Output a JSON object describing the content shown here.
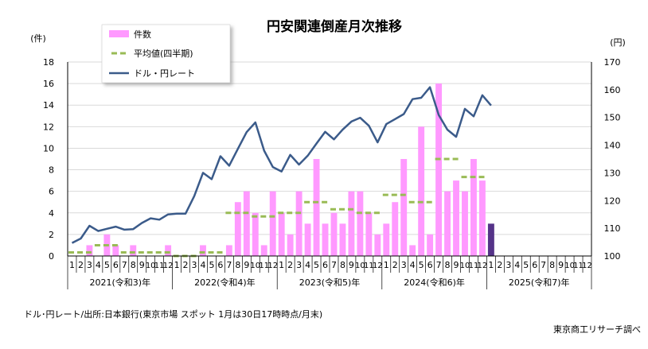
{
  "chart_data": {
    "type": "bar",
    "title": "円安関連倒産月次推移",
    "left_axis": {
      "unit_label": "(件)",
      "range": [
        0,
        18
      ],
      "ticks": [
        0,
        2,
        4,
        6,
        8,
        10,
        12,
        14,
        16,
        18
      ]
    },
    "right_axis": {
      "unit_label": "(円)",
      "range": [
        100,
        170
      ],
      "ticks": [
        100,
        110,
        120,
        130,
        140,
        150,
        160,
        170
      ]
    },
    "grid": true,
    "legend_position": "top-left",
    "month_labels": [
      "1",
      "2",
      "3",
      "4",
      "5",
      "6",
      "7",
      "8",
      "9",
      "10",
      "11",
      "12",
      "1",
      "2",
      "3",
      "4",
      "5",
      "6",
      "7",
      "8",
      "9",
      "10",
      "11",
      "12",
      "1",
      "2",
      "3",
      "4",
      "5",
      "6",
      "7",
      "8",
      "9",
      "10",
      "11",
      "12",
      "1",
      "2",
      "3",
      "4",
      "5",
      "6",
      "7",
      "8",
      "9",
      "10",
      "11",
      "12",
      "1",
      "2",
      "3",
      "4",
      "5",
      "6",
      "7",
      "8",
      "9",
      "10",
      "11",
      "12"
    ],
    "year_groups": [
      {
        "label": "2021(令和3)年",
        "months": 12
      },
      {
        "label": "2022(令和4)年",
        "months": 12
      },
      {
        "label": "2023(令和5)年",
        "months": 12
      },
      {
        "label": "2024(令和6)年",
        "months": 12
      },
      {
        "label": "2025(令和7)年",
        "months": 12
      }
    ],
    "series": [
      {
        "name": "件数",
        "type": "bar",
        "axis": "left",
        "color": "#ff99ff",
        "values": [
          0,
          0,
          1,
          0,
          2,
          1,
          0,
          1,
          0,
          0,
          0,
          1,
          0,
          0,
          0,
          1,
          0,
          0,
          1,
          5,
          6,
          4,
          1,
          6,
          4,
          2,
          6,
          3,
          9,
          3,
          4,
          3,
          6,
          6,
          4,
          2,
          3,
          5,
          9,
          1,
          12,
          2,
          16,
          6,
          7,
          6,
          9,
          7,
          3,
          null,
          null,
          null,
          null,
          null,
          null,
          null,
          null,
          null,
          null,
          null
        ]
      },
      {
        "name": "平均値(四半期)",
        "type": "quarter-average",
        "axis": "left",
        "color": "#99bb55",
        "values": [
          0.33,
          1.0,
          0.33,
          0.33,
          0,
          0.33,
          4.0,
          3.67,
          4.0,
          5.0,
          4.33,
          4.0,
          5.67,
          5.0,
          9.0,
          7.33
        ]
      },
      {
        "name": "ドル・円レート",
        "type": "line",
        "axis": "right",
        "color": "#3b5b8a",
        "values": [
          104.7,
          106.3,
          110.9,
          109.0,
          109.8,
          110.6,
          109.5,
          109.7,
          111.9,
          113.6,
          113.1,
          115.0,
          115.3,
          115.3,
          121.6,
          130.0,
          127.7,
          136.0,
          132.6,
          138.7,
          144.7,
          148.2,
          138.0,
          132.1,
          130.5,
          136.5,
          133.0,
          136.2,
          140.6,
          144.8,
          142.1,
          145.6,
          148.5,
          149.9,
          147.0,
          141.0,
          147.6,
          149.4,
          151.2,
          156.6,
          157.1,
          160.9,
          150.9,
          145.6,
          143.0,
          153.1,
          150.4,
          158.0,
          154.3
        ]
      }
    ],
    "latest_bar_color": "#553388"
  },
  "footer": {
    "source_note": "ドル･円レート/出所:日本銀行(東京市場 スポット 1月は30日17時時点/月末)",
    "credit": "東京商工リサーチ調べ"
  }
}
